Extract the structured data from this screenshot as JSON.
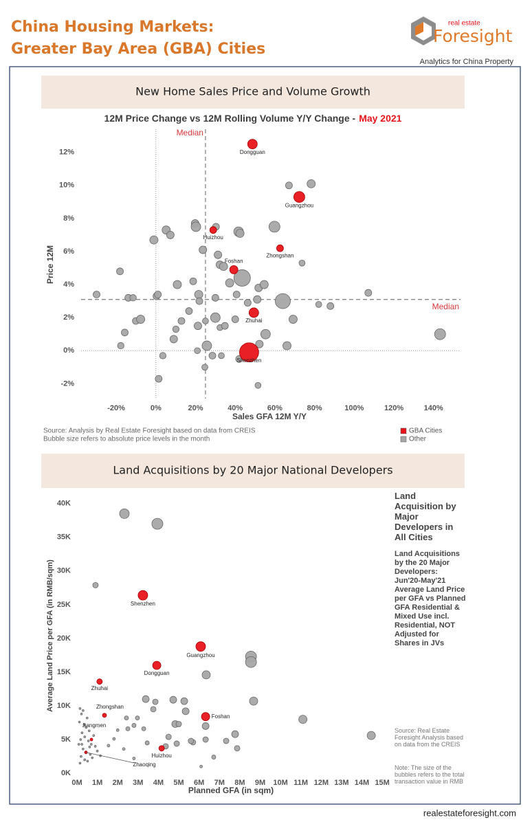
{
  "header": {
    "title_line1": "China Housing Markets:",
    "title_line2": "Greater Bay Area (GBA) Cities",
    "logo_small": "real estate",
    "logo_name": "Foresight",
    "tagline": "Analytics for China Property"
  },
  "footer": "realestateforesight.com",
  "chart_data": [
    {
      "type": "bubble",
      "heading": "New Home Sales Price and Volume Growth",
      "title": "12M Price Change vs 12M Rolling Volume Y/Y Change -",
      "title_date": "May 2021",
      "x_label": "Sales GFA 12M Y/Y",
      "y_label": "Price 12M",
      "xlim": [
        -37.7,
        153.6
      ],
      "ylim": [
        -2.9,
        13.4
      ],
      "xticks": [
        {
          "value": -20,
          "label": "-20%"
        },
        {
          "value": 0,
          "label": "0%"
        },
        {
          "value": 20,
          "label": "20%"
        },
        {
          "value": 40,
          "label": "40%"
        },
        {
          "value": 60,
          "label": "60%"
        },
        {
          "value": 80,
          "label": "80%"
        },
        {
          "value": 100,
          "label": "100%"
        },
        {
          "value": 120,
          "label": "120%"
        },
        {
          "value": 140,
          "label": "140%"
        }
      ],
      "yticks": [
        {
          "value": -2,
          "label": "-2%"
        },
        {
          "value": 0,
          "label": "0%"
        },
        {
          "value": 2,
          "label": "2%"
        },
        {
          "value": 4,
          "label": "4%"
        },
        {
          "value": 6,
          "label": "6%"
        },
        {
          "value": 8,
          "label": "8%"
        },
        {
          "value": 10,
          "label": "10%"
        },
        {
          "value": 12,
          "label": "12%"
        }
      ],
      "zero_lines": true,
      "median_x": 25,
      "median_y": 3.1,
      "median_label": "Median",
      "legend": "bottom-right",
      "notes": [
        "Source: Analysis by Real Estate Foresight based on data from CREIS",
        "Bubble size refers to absolute price levels in the month"
      ],
      "series": [
        {
          "name": "GBA Cities",
          "color": "#e8141a",
          "labels": [
            "Dongguan",
            "Guangzhou",
            "Huizhou",
            "Zhongshan",
            "Foshan",
            "Zhuhai",
            "Shenzhen"
          ],
          "x": [
            48.7,
            72.3,
            28.9,
            62.6,
            39.3,
            49.4,
            47
          ],
          "values": [
            12.5,
            9.3,
            7.3,
            6.2,
            4.9,
            2.3,
            -0.1
          ],
          "sizes": [
            17600,
            23000,
            9000,
            9000,
            13000,
            17600,
            70000
          ]
        },
        {
          "name": "Other",
          "color": "#a6a6a6",
          "x": [
            -29.9,
            -18.1,
            -13.9,
            -11.5,
            -17.7,
            -15.7,
            -10.1,
            -7.7,
            -1,
            5.2,
            7.3,
            0.3,
            1.0,
            3.5,
            1.4,
            10.8,
            9.0,
            12.9,
            10.1,
            16.7,
            18.8,
            19.8,
            20.2,
            21.6,
            21.2,
            21.9,
            20.9,
            23.7,
            25.7,
            25,
            24.7,
            28.5,
            30.3,
            30,
            30,
            31.3,
            32.3,
            34.1,
            33,
            32.3,
            34.8,
            37.2,
            40,
            40.7,
            41.7,
            42.4,
            43.5,
            42,
            46.3,
            51.1,
            51.8,
            54.6,
            55.3,
            52.2,
            51.5,
            59.8,
            67.1,
            64,
            66.1,
            69.2,
            73.7,
            78.3,
            82.1,
            88,
            107.1,
            143.3
          ],
          "values": [
            3.4,
            4.8,
            3.2,
            3.2,
            0.3,
            1.1,
            1.8,
            1.9,
            6.7,
            7.3,
            7.0,
            3.3,
            3.4,
            -0.3,
            -1.7,
            4.0,
            0.7,
            1.8,
            1.3,
            2.4,
            4.2,
            7.7,
            7.5,
            3.4,
            1.5,
            3.0,
            0,
            6.1,
            0.3,
            1.8,
            -1,
            -0.3,
            7.5,
            3.2,
            2.0,
            5.8,
            5.2,
            5.1,
            -0.3,
            1.4,
            1.5,
            4.1,
            1.9,
            3.4,
            7.2,
            7.1,
            4.4,
            -0.5,
            2.9,
            3.1,
            3.8,
            4.0,
            1.0,
            0.4,
            -2.1,
            7.5,
            10.0,
            3.0,
            0.3,
            1.9,
            5.3,
            10.1,
            2.8,
            2.7,
            3.5,
            1.0
          ],
          "sizes": [
            9000,
            9000,
            9000,
            8000,
            8000,
            9000,
            9000,
            13000,
            13000,
            13000,
            11000,
            9000,
            9000,
            8000,
            9000,
            13000,
            11000,
            9000,
            8000,
            9000,
            9000,
            11000,
            17600,
            13000,
            11000,
            9000,
            7000,
            11000,
            17600,
            7000,
            7000,
            9000,
            9000,
            9000,
            17600,
            11000,
            11000,
            13000,
            7000,
            7000,
            9000,
            13000,
            9000,
            9000,
            17600,
            13000,
            52000,
            9000,
            9000,
            11000,
            11000,
            13000,
            17600,
            11000,
            7000,
            23000,
            9000,
            43600,
            13000,
            13000,
            7000,
            13000,
            7000,
            9000,
            9000,
            23000
          ]
        }
      ]
    },
    {
      "type": "bubble",
      "heading": "Land Acquisitions by 20 Major National Developers",
      "x_label": "Planned GFA (in sqm)",
      "y_label": "Average Land Price per GFA (in RMB/sqm)",
      "side_heading": "Land Acquisition by Major Developers in All Cities",
      "side_text": "Land Acquisitions by the 20 Major Developers: Jun'20-May'21 Average Land Price per GFA vs Planned GFA Residential & Mixed Use incl. Residential, NOT Adjusted for Shares in JVs",
      "source": "Source: Real Estate Foresight Analysis based on data from the CREIS",
      "note": "Note: The size of the bubbles refers to the total transaction value in RMB",
      "xlim": [
        -135000,
        15300000
      ],
      "ylim": [
        -500,
        41600
      ],
      "xticks": [
        {
          "value": 0,
          "label": "0M"
        },
        {
          "value": 1000000,
          "label": "1M"
        },
        {
          "value": 2000000,
          "label": "2M"
        },
        {
          "value": 3000000,
          "label": "3M"
        },
        {
          "value": 4000000,
          "label": "4M"
        },
        {
          "value": 5000000,
          "label": "5M"
        },
        {
          "value": 6000000,
          "label": "6M"
        },
        {
          "value": 7000000,
          "label": "7M"
        },
        {
          "value": 8000000,
          "label": "8M"
        },
        {
          "value": 9000000,
          "label": "9M"
        },
        {
          "value": 10000000,
          "label": "10M"
        },
        {
          "value": 11000000,
          "label": "11M"
        },
        {
          "value": 12000000,
          "label": "12M"
        },
        {
          "value": 13000000,
          "label": "13M"
        },
        {
          "value": 14000000,
          "label": "14M"
        },
        {
          "value": 15000000,
          "label": "15M"
        }
      ],
      "yticks": [
        {
          "value": 0,
          "label": "0K"
        },
        {
          "value": 5000,
          "label": "5K"
        },
        {
          "value": 10000,
          "label": "10K"
        },
        {
          "value": 15000,
          "label": "15K"
        },
        {
          "value": 20000,
          "label": "20K"
        },
        {
          "value": 25000,
          "label": "25K"
        },
        {
          "value": 30000,
          "label": "30K"
        },
        {
          "value": 35000,
          "label": "35K"
        },
        {
          "value": 40000,
          "label": "40K"
        }
      ],
      "series": [
        {
          "color": "#e8141a",
          "labels": [
            "Shenzhen",
            "Guangzhou",
            "Dongguan",
            "Zhuhai",
            "Zhongshan",
            "Jiangmen",
            "Foshan",
            "Huizhou",
            "Zhaoqing"
          ],
          "x": [
            3240000,
            6080000,
            3920000,
            1110000,
            1350000,
            710000,
            6320000,
            4160000,
            440000
          ],
          "values": [
            26400,
            18800,
            16000,
            13600,
            8600,
            5000,
            8400,
            3700,
            3100
          ],
          "sizes": [
            49000000000,
            49000000000,
            36000000000,
            16000000000,
            9000000000,
            4000000000,
            36000000000,
            16000000000,
            4000000000
          ]
        },
        {
          "color": "#a6a6a6",
          "x": [
            2330000,
            3950000,
            910000,
            8550000,
            8550000,
            6350000,
            8680000,
            11100000,
            14460000,
            3380000,
            3850000,
            4730000,
            5270000,
            3750000,
            5340000,
            4830000,
            5000000,
            6320000,
            7770000,
            7330000,
            7870000,
            6720000,
            6320000,
            5700000,
            5600000,
            4900000,
            4500000,
            4360000,
            3450000,
            2800000,
            2970000,
            2430000,
            2500000,
            2000000,
            3280000,
            1820000,
            1550000,
            2300000,
            2800000,
            6100000,
            150000,
            220000,
            300000,
            120000,
            350000,
            450000,
            500000,
            600000,
            250000,
            380000,
            180000,
            560000,
            700000,
            820000,
            900000,
            300000,
            450000,
            650000,
            200000,
            380000,
            520000,
            150000,
            750000,
            1000000,
            1150000,
            90000,
            240000,
            620000
          ],
          "values": [
            38500,
            37000,
            27900,
            17300,
            16500,
            14600,
            10700,
            8000,
            5600,
            11000,
            10600,
            10900,
            10700,
            9500,
            9200,
            7300,
            7300,
            7000,
            5800,
            4800,
            3700,
            2400,
            5000,
            4600,
            4800,
            4400,
            5400,
            4000,
            4500,
            7100,
            8200,
            8200,
            6600,
            6400,
            6600,
            5100,
            4100,
            3600,
            2200,
            1000,
            9600,
            8800,
            9300,
            7600,
            7200,
            6800,
            8200,
            6300,
            6000,
            5400,
            5000,
            4800,
            4300,
            5600,
            4000,
            3600,
            3100,
            2800,
            2500,
            2000,
            1800,
            1500,
            2300,
            3300,
            2600,
            4300,
            4300,
            3900
          ],
          "sizes": [
            49000000000,
            64000000000,
            16000000000,
            64000000000,
            64000000000,
            36000000000,
            36000000000,
            36000000000,
            36000000000,
            25000000000,
            16000000000,
            25000000000,
            25000000000,
            16000000000,
            25000000000,
            25000000000,
            16000000000,
            25000000000,
            25000000000,
            16000000000,
            16000000000,
            9000000000,
            16000000000,
            16000000000,
            16000000000,
            16000000000,
            16000000000,
            16000000000,
            9000000000,
            9000000000,
            9000000000,
            9000000000,
            9000000000,
            4000000000,
            9000000000,
            4000000000,
            4000000000,
            4000000000,
            4000000000,
            4000000000,
            2000000000,
            2000000000,
            2000000000,
            2000000000,
            2000000000,
            2000000000,
            2000000000,
            2000000000,
            2000000000,
            2000000000,
            2000000000,
            2000000000,
            2000000000,
            2000000000,
            2000000000,
            2000000000,
            2000000000,
            2000000000,
            2000000000,
            2000000000,
            2000000000,
            2000000000,
            2000000000,
            2000000000,
            2000000000,
            2000000000,
            2000000000,
            2000000000
          ]
        }
      ]
    }
  ]
}
